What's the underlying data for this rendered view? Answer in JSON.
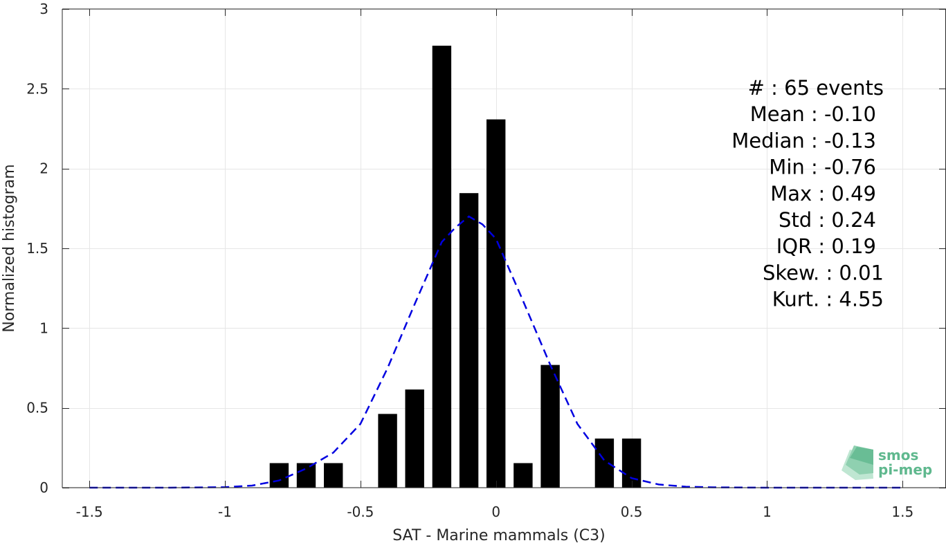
{
  "chart_data": {
    "type": "bar",
    "xlabel": "SAT - Marine mammals (C3)",
    "ylabel": "Normalized histogram",
    "xlim": [
      -1.6,
      1.66
    ],
    "ylim": [
      0,
      3
    ],
    "grid": true,
    "x_ticks": [
      "-1.5",
      "-1",
      "-0.5",
      "0",
      "0.5",
      "1",
      "1.5"
    ],
    "x_tick_values": [
      -1.5,
      -1,
      -0.5,
      0,
      0.5,
      1,
      1.5
    ],
    "y_ticks": [
      "0",
      "0.5",
      "1",
      "1.5",
      "2",
      "2.5",
      "3"
    ],
    "y_tick_values": [
      0,
      0.5,
      1,
      1.5,
      2,
      2.5,
      3
    ],
    "bar_width": 0.07,
    "bars": [
      {
        "x": -0.8,
        "value": 0.154
      },
      {
        "x": -0.7,
        "value": 0.154
      },
      {
        "x": -0.6,
        "value": 0.154
      },
      {
        "x": -0.4,
        "value": 0.462
      },
      {
        "x": -0.3,
        "value": 0.615
      },
      {
        "x": -0.2,
        "value": 2.77
      },
      {
        "x": -0.1,
        "value": 1.846
      },
      {
        "x": 0.0,
        "value": 2.308
      },
      {
        "x": 0.1,
        "value": 0.154
      },
      {
        "x": 0.2,
        "value": 0.769
      },
      {
        "x": 0.4,
        "value": 0.308
      },
      {
        "x": 0.5,
        "value": 0.308
      }
    ],
    "fit_curve": {
      "style": "dashed",
      "color": "#0000e0",
      "x": [
        -1.5,
        -1.2,
        -1.0,
        -0.9,
        -0.8,
        -0.7,
        -0.6,
        -0.5,
        -0.4,
        -0.3,
        -0.2,
        -0.15,
        -0.1,
        -0.05,
        0.0,
        0.1,
        0.2,
        0.3,
        0.4,
        0.5,
        0.6,
        0.7,
        0.8,
        1.0,
        1.2,
        1.5
      ],
      "y": [
        0.0,
        0.0,
        0.003,
        0.013,
        0.045,
        0.12,
        0.22,
        0.4,
        0.75,
        1.15,
        1.54,
        1.63,
        1.7,
        1.65,
        1.56,
        1.17,
        0.77,
        0.4,
        0.17,
        0.06,
        0.02,
        0.006,
        0.002,
        0.0,
        0.0,
        0.0
      ]
    },
    "stats": [
      "#  : 65 events",
      "Mean : -0.10",
      "Median : -0.13",
      "Min : -0.76",
      "Max : 0.49",
      "Std : 0.24",
      "IQR : 0.19",
      "Skew. : 0.01",
      "Kurt. : 4.55"
    ]
  },
  "logo": {
    "line1": "smos",
    "line2": "pi-mep",
    "color": "#5fb88e"
  }
}
